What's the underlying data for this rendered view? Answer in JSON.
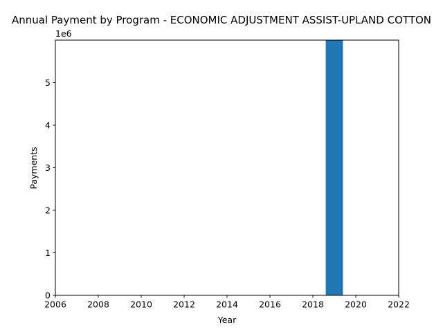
{
  "chart_data": {
    "type": "bar",
    "title": "Annual Payment by Program - ECONOMIC ADJUSTMENT ASSIST-UPLAND COTTON",
    "xlabel": "Year",
    "ylabel": "Payments",
    "y_offset_label": "1e6",
    "x": [
      2019
    ],
    "values": [
      6000000
    ],
    "xlim": [
      2006,
      2022
    ],
    "ylim": [
      0,
      6000000
    ],
    "x_ticks": [
      "2006",
      "2008",
      "2010",
      "2012",
      "2014",
      "2016",
      "2018",
      "2020",
      "2022"
    ],
    "y_ticks": [
      "0",
      "1",
      "2",
      "3",
      "4",
      "5"
    ],
    "grid": false,
    "bar_color": "#1f77b4"
  }
}
